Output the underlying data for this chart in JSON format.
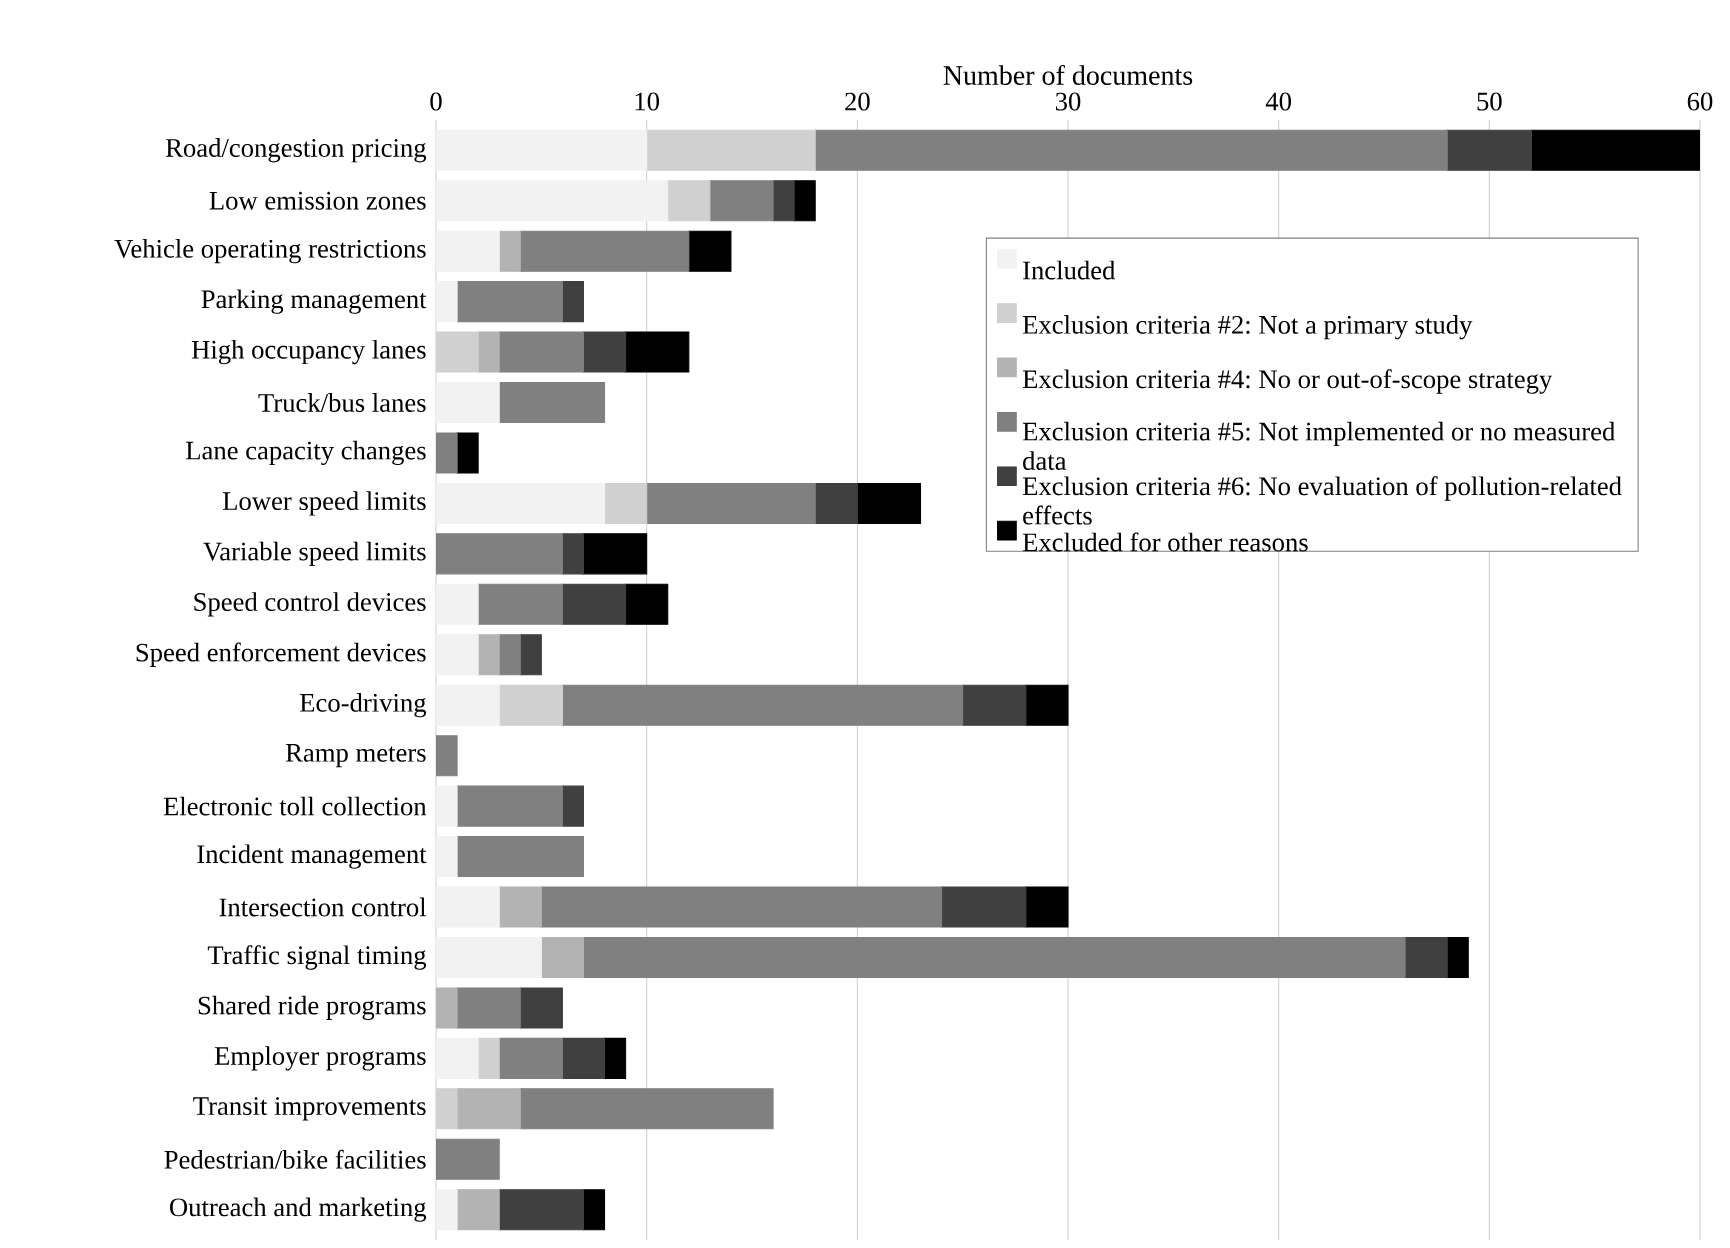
{
  "chart_data": {
    "type": "bar",
    "orientation": "horizontal",
    "stacked": true,
    "xlabel": "Number of documents",
    "categories": [
      "Road/congestion pricing",
      "Low emission zones",
      "Vehicle operating restrictions",
      "Parking management",
      "High occupancy lanes",
      "Truck/bus lanes",
      "Lane capacity changes",
      "Lower speed limits",
      "Variable speed limits",
      "Speed control devices",
      "Speed enforcement devices",
      "Eco-driving",
      "Ramp meters",
      "Electronic toll collection",
      "Incident management",
      "Intersection control",
      "Traffic signal timing",
      "Shared ride programs",
      "Employer programs",
      "Transit improvements",
      "Pedestrian/bike facilities",
      "Outreach and marketing"
    ],
    "series": [
      {
        "name": "Included",
        "color": "#f2f2f2",
        "values": [
          10,
          11,
          3,
          1,
          0,
          3,
          0,
          8,
          0,
          2,
          2,
          3,
          0,
          1,
          1,
          3,
          5,
          0,
          2,
          0,
          0,
          1
        ]
      },
      {
        "name": "Exclusion criteria #2: Not a primary study",
        "color": "#d0d0d0",
        "values": [
          8,
          2,
          0,
          0,
          2,
          0,
          0,
          2,
          0,
          0,
          0,
          3,
          0,
          0,
          0,
          0,
          0,
          0,
          1,
          1,
          0,
          0
        ]
      },
      {
        "name": "Exclusion criteria #4: No or out-of-scope strategy",
        "color": "#b3b3b3",
        "values": [
          0,
          0,
          1,
          0,
          1,
          0,
          0,
          0,
          0,
          0,
          1,
          0,
          0,
          0,
          0,
          2,
          2,
          1,
          0,
          3,
          0,
          2
        ]
      },
      {
        "name": "Exclusion criteria #5: Not implemented or no measured data",
        "color": "#808080",
        "values": [
          30,
          3,
          8,
          5,
          4,
          5,
          1,
          8,
          6,
          4,
          1,
          19,
          1,
          5,
          6,
          19,
          39,
          3,
          3,
          12,
          3,
          0
        ]
      },
      {
        "name": "Exclusion criteria #6: No evaluation of pollution-related effects",
        "color": "#404040",
        "values": [
          4,
          1,
          0,
          1,
          2,
          0,
          0,
          2,
          1,
          3,
          1,
          3,
          0,
          1,
          0,
          4,
          2,
          2,
          2,
          0,
          0,
          4
        ]
      },
      {
        "name": "Excluded for other reasons",
        "color": "#000000",
        "values": [
          8,
          1,
          2,
          0,
          3,
          0,
          1,
          3,
          3,
          2,
          0,
          2,
          0,
          0,
          0,
          2,
          1,
          0,
          1,
          0,
          0,
          1
        ]
      }
    ],
    "xlim": [
      0,
      60
    ],
    "xticks": [
      0,
      10,
      20,
      30,
      40,
      50,
      60
    ],
    "grid": "x",
    "legend": "right"
  }
}
